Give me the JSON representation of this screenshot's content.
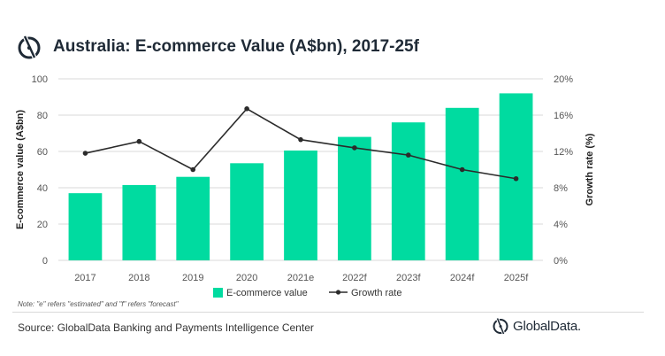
{
  "header": {
    "title": "Australia: E-commerce Value (A$bn), 2017-25f",
    "logo_icon": "globaldata-logo-icon"
  },
  "chart_data": {
    "type": "bar",
    "title": "Australia: E-commerce Value (A$bn), 2017-25f",
    "categories": [
      "2017",
      "2018",
      "2019",
      "2020",
      "2021e",
      "2022f",
      "2023f",
      "2024f",
      "2025f"
    ],
    "series": [
      {
        "name": "E-commerce value",
        "type": "bar",
        "axis": "left",
        "color": "#00dba0",
        "values": [
          37,
          41.5,
          46,
          53.5,
          60.5,
          68,
          76,
          84,
          92
        ]
      },
      {
        "name": "Growth rate",
        "type": "line",
        "axis": "right",
        "color": "#2b2b2b",
        "values": [
          11.8,
          13.1,
          10.0,
          16.7,
          13.3,
          12.4,
          11.6,
          10.0,
          9.0
        ]
      }
    ],
    "ylabel": "E-commerce value (A$bn)",
    "y2label": "Growth rate (%)",
    "ylim": [
      0,
      100
    ],
    "y2lim": [
      0,
      20
    ],
    "yticks": [
      "0",
      "20",
      "40",
      "60",
      "80",
      "100"
    ],
    "y2ticks": [
      "0%",
      "4%",
      "8%",
      "12%",
      "16%",
      "20%"
    ],
    "grid": true,
    "legend_position": "bottom"
  },
  "footer": {
    "note": "Note: \"e\" refers \"estimated\" and \"f\" refers \"forecast\"",
    "source": "Source: GlobalData Banking and Payments Intelligence Center",
    "brand": "GlobalData."
  }
}
